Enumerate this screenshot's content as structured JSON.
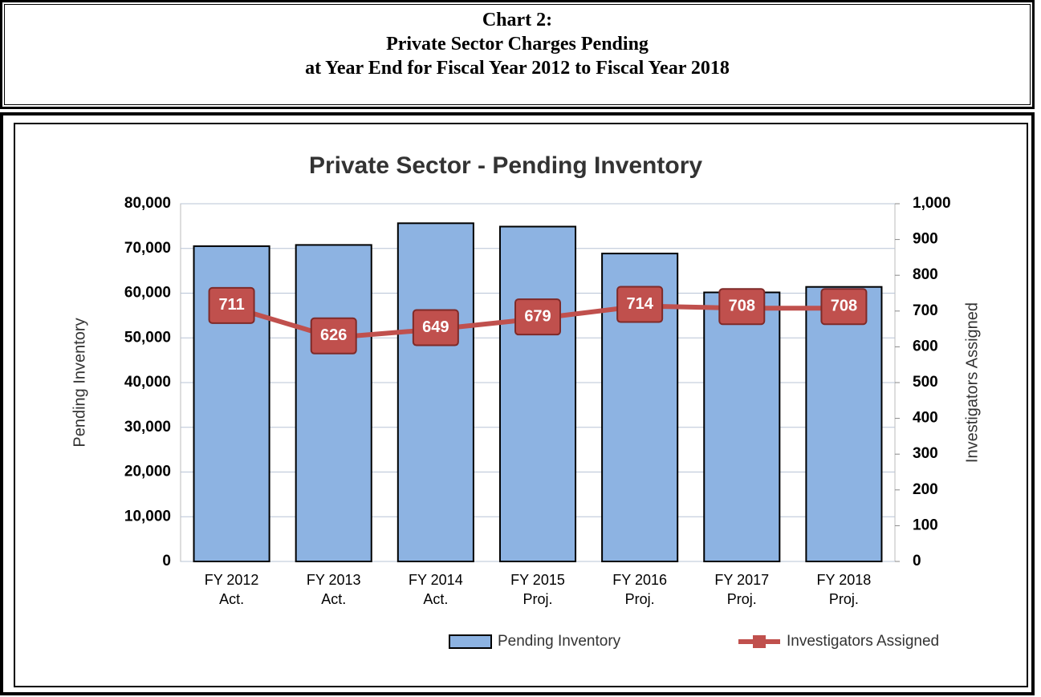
{
  "header": {
    "lines": [
      "Chart 2:",
      "Private Sector Charges Pending",
      "at Year End for Fiscal Year 2012 to Fiscal Year 2018"
    ]
  },
  "chart_data": {
    "type": "bar-line",
    "title": "Private Sector - Pending Inventory",
    "categories": [
      [
        "FY 2012",
        "Act."
      ],
      [
        "FY 2013",
        "Act."
      ],
      [
        "FY 2014",
        "Act."
      ],
      [
        "FY 2015",
        "Proj."
      ],
      [
        "FY 2016",
        "Proj."
      ],
      [
        "FY 2017",
        "Proj."
      ],
      [
        "FY 2018",
        "Proj."
      ]
    ],
    "y_label": "Pending Inventory",
    "y2_label": "Investigators Assigned",
    "ylim": [
      0,
      80000
    ],
    "yticks": [
      {
        "value": 0,
        "label": "0"
      },
      {
        "value": 10000,
        "label": "10,000"
      },
      {
        "value": 20000,
        "label": "20,000"
      },
      {
        "value": 30000,
        "label": "30,000"
      },
      {
        "value": 40000,
        "label": "40,000"
      },
      {
        "value": 50000,
        "label": "50,000"
      },
      {
        "value": 60000,
        "label": "60,000"
      },
      {
        "value": 70000,
        "label": "70,000"
      },
      {
        "value": 80000,
        "label": "80,000"
      }
    ],
    "y2lim": [
      0,
      1000
    ],
    "y2ticks": [
      0,
      100,
      200,
      300,
      400,
      500,
      600,
      700,
      800,
      900,
      {
        "value": 1000,
        "label": "1,000"
      }
    ],
    "grid": true,
    "legend": "bottom",
    "series": [
      {
        "name": "Pending Inventory",
        "kind": "bar",
        "color": "#8db3e2",
        "values": [
          70512,
          70781,
          75638,
          74886,
          68864,
          60173,
          61400
        ]
      },
      {
        "name": "Investigators Assigned",
        "kind": "line",
        "axis": "y2",
        "color": "#c0504d",
        "values": [
          711,
          626,
          649,
          679,
          714,
          708,
          708
        ]
      }
    ]
  }
}
